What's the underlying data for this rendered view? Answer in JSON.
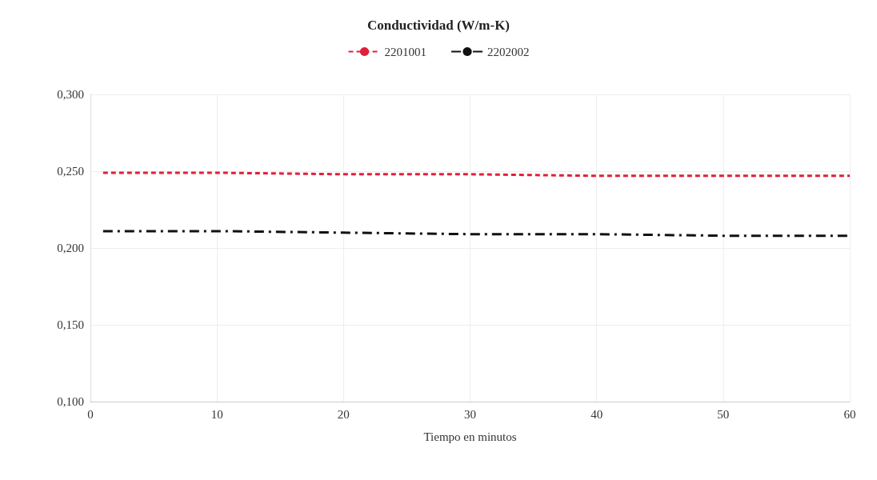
{
  "chart_data": {
    "type": "line",
    "title": "Conductividad (W/m-K)",
    "xlabel": "Tiempo en minutos",
    "x": [
      1,
      10,
      20,
      30,
      40,
      50,
      60
    ],
    "series": [
      {
        "name": "2201001",
        "color": "#e0203a",
        "line_style": "dashed",
        "values": [
          0.249,
          0.249,
          0.248,
          0.248,
          0.247,
          0.247,
          0.247
        ]
      },
      {
        "name": "2202002",
        "color": "#111111",
        "line_style": "dashdot",
        "values": [
          0.211,
          0.211,
          0.21,
          0.209,
          0.209,
          0.208,
          0.208
        ]
      }
    ],
    "xlim": [
      0,
      60
    ],
    "xticks": [
      0,
      10,
      20,
      30,
      40,
      50,
      60
    ],
    "ylim": [
      0.1,
      0.3
    ],
    "yticks": [
      {
        "value": 0.1,
        "label": "0,100"
      },
      {
        "value": 0.15,
        "label": "0,150"
      },
      {
        "value": 0.2,
        "label": "0,200"
      },
      {
        "value": 0.25,
        "label": "0,250"
      },
      {
        "value": 0.3,
        "label": "0,300"
      }
    ],
    "grid": true,
    "legend": "top",
    "marker": "none"
  }
}
